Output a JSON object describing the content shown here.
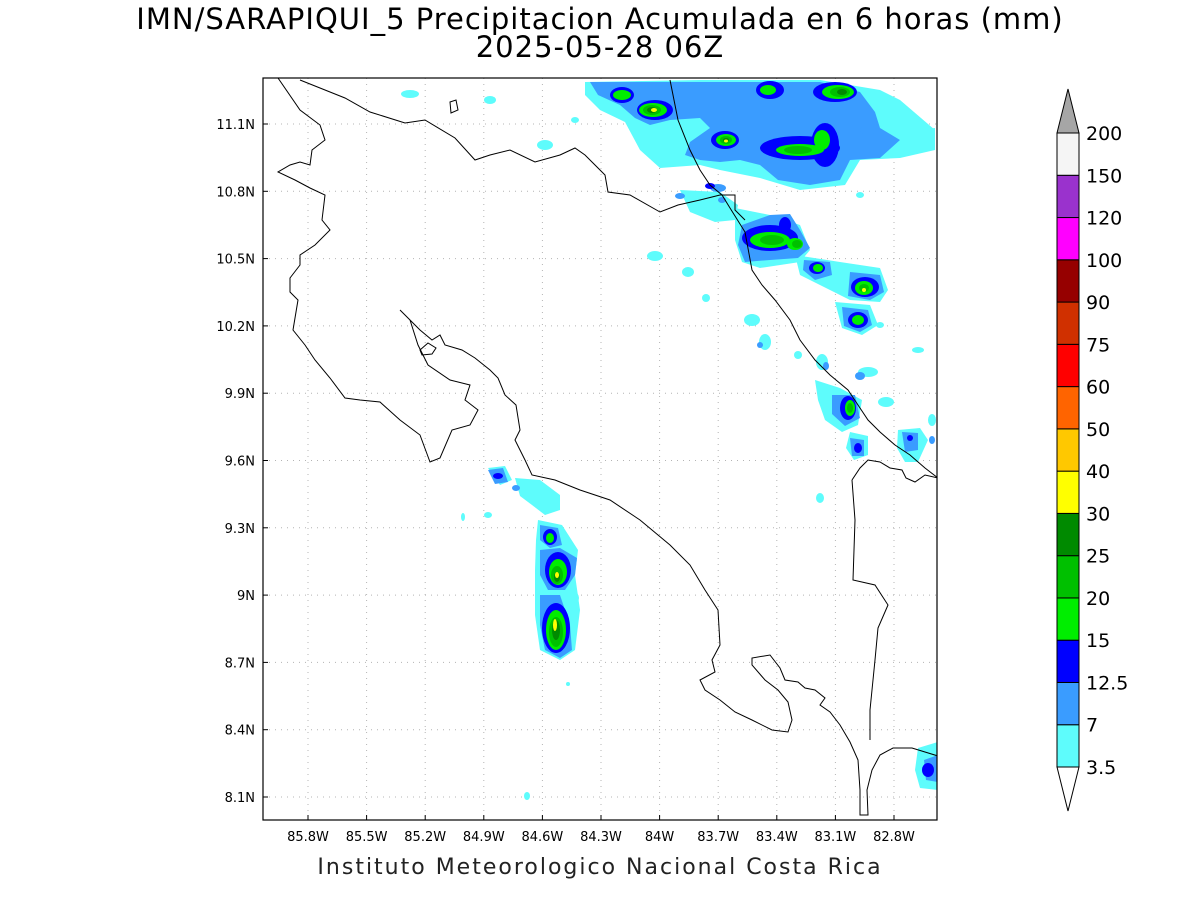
{
  "title": {
    "line1": "IMN/SARAPIQUI_5 Precipitacion Acumulada en 6 horas (mm)",
    "line2": "2025-05-28 06Z"
  },
  "footer": "Instituto Meteorologico Nacional Costa Rica",
  "axes": {
    "x_ticks": [
      "85.8W",
      "85.5W",
      "85.2W",
      "84.9W",
      "84.6W",
      "84.3W",
      "84W",
      "83.7W",
      "83.4W",
      "83.1W",
      "82.8W"
    ],
    "y_ticks": [
      "11.1N",
      "10.8N",
      "10.5N",
      "10.2N",
      "9.9N",
      "9.6N",
      "9.3N",
      "9N",
      "8.7N",
      "8.4N",
      "8.1N"
    ],
    "grid": true
  },
  "colorbar": {
    "levels": [
      "3.5",
      "7",
      "12.5",
      "15",
      "20",
      "25",
      "30",
      "40",
      "50",
      "60",
      "75",
      "90",
      "100",
      "120",
      "150",
      "200"
    ],
    "colors": [
      "#5efcfc",
      "#3a9cff",
      "#0000ff",
      "#00ee00",
      "#00c000",
      "#008a00",
      "#ffff00",
      "#ffc800",
      "#ff6400",
      "#ff0000",
      "#d03000",
      "#960000",
      "#ff00ff",
      "#9a32cd",
      "#f5f5f5"
    ],
    "over_color": "#a6a6a6",
    "under_color": "#ffffff"
  }
}
